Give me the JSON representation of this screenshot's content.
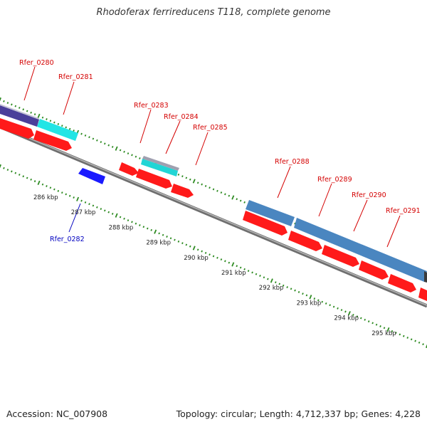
{
  "title": "Rhodoferax ferrireducens T118, complete genome",
  "footer": {
    "accession_label": "Accession:",
    "accession": "NC_007908",
    "topology_text": "Topology: circular; Length: 4,712,337 bp; Genes: 4,228"
  },
  "colors": {
    "backbone": "#8a8a8a",
    "gc_ticks": "#2e8b22",
    "forward_gene": "#ff1a1a",
    "reverse_gene": "#1a1aff",
    "label_forward": "#d40000",
    "label_reverse": "#0000c0",
    "cyan_feature": "#22e5e5",
    "steel_feature": "#4a86c0",
    "purple_feature": "#4a3f9a"
  },
  "scale": {
    "unit": "kbp",
    "ticks": [
      {
        "kbp": 286,
        "label": "286 kbp"
      },
      {
        "kbp": 287,
        "label": "287 kbp"
      },
      {
        "kbp": 288,
        "label": "288 kbp"
      },
      {
        "kbp": 289,
        "label": "289 kbp"
      },
      {
        "kbp": 290,
        "label": "290 kbp"
      },
      {
        "kbp": 291,
        "label": "291 kbp"
      },
      {
        "kbp": 292,
        "label": "292 kbp"
      },
      {
        "kbp": 293,
        "label": "293 kbp"
      },
      {
        "kbp": 294,
        "label": "294 kbp"
      },
      {
        "kbp": 295,
        "label": "295 kbp"
      }
    ]
  },
  "genes": [
    {
      "locus": "Rfer_0280",
      "strand": "forward"
    },
    {
      "locus": "Rfer_0281",
      "strand": "forward"
    },
    {
      "locus": "Rfer_0282",
      "strand": "reverse"
    },
    {
      "locus": "Rfer_0283",
      "strand": "forward"
    },
    {
      "locus": "Rfer_0284",
      "strand": "forward"
    },
    {
      "locus": "Rfer_0285",
      "strand": "forward"
    },
    {
      "locus": "Rfer_0288",
      "strand": "forward"
    },
    {
      "locus": "Rfer_0289",
      "strand": "forward"
    },
    {
      "locus": "Rfer_0290",
      "strand": "forward"
    },
    {
      "locus": "Rfer_0291",
      "strand": "forward"
    }
  ]
}
